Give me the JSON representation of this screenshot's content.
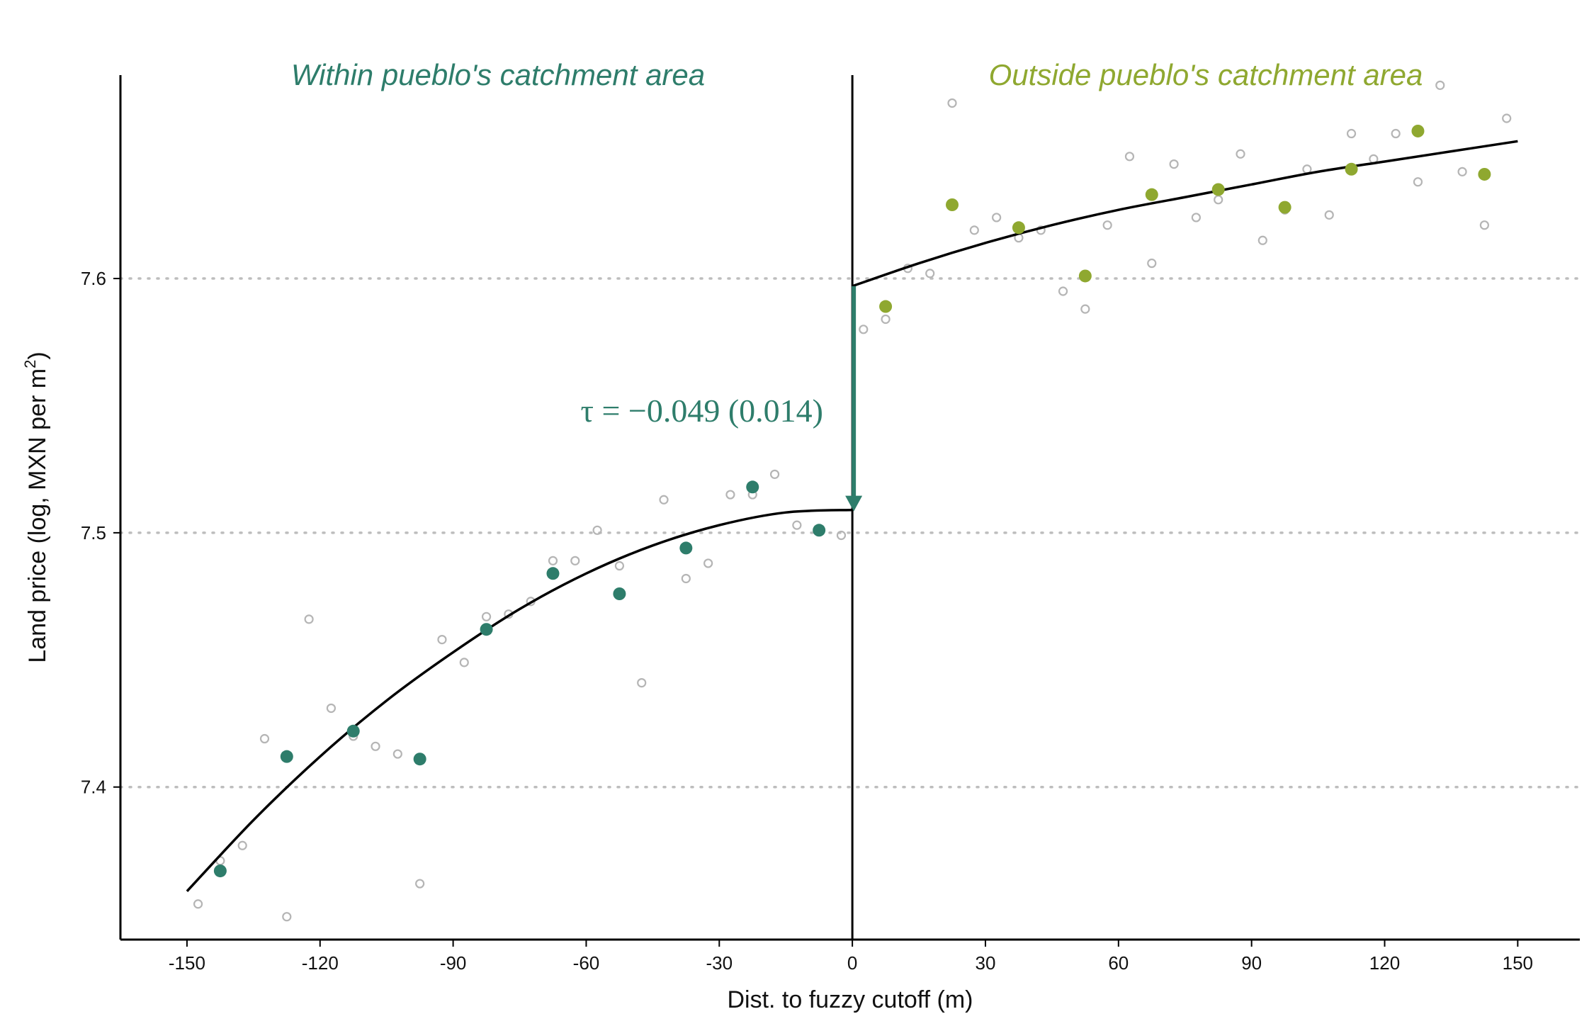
{
  "chart_data": {
    "type": "scatter",
    "xlabel": "Dist. to fuzzy cutoff (m)",
    "ylabel_main": "Land price (log, MXN per m",
    "ylabel_sup": "2",
    "ylabel_close": ")",
    "xlim": [
      -165,
      164
    ],
    "ylim": [
      7.34,
      7.68
    ],
    "x_ticks": [
      -150,
      -120,
      -90,
      -60,
      -30,
      0,
      30,
      60,
      90,
      120,
      150
    ],
    "y_ticks": [
      7.4,
      7.5,
      7.6
    ],
    "y_tick_labels": [
      "7.4",
      "7.5",
      "7.6"
    ],
    "gridlines_y": [
      7.4,
      7.5,
      7.6
    ],
    "cutoff_x": 0,
    "region_labels": {
      "left": "Within pueblo's catchment area",
      "right": "Outside pueblo's catchment area"
    },
    "colors": {
      "left": "#2e7d6b",
      "right": "#8fa830",
      "raw": "#b5b5b5",
      "fit": "#000000",
      "grid": "#bdbdbd"
    },
    "annotation": {
      "text": "τ = −0.049 (0.014)",
      "arrow_x": 0,
      "arrow_from": 7.597,
      "arrow_to": 7.509
    },
    "series": [
      {
        "role": "binned-left",
        "x": [
          -142.5,
          -127.5,
          -112.5,
          -97.5,
          -82.5,
          -67.5,
          -52.5,
          -37.5,
          -22.5,
          -7.5
        ],
        "y": [
          7.367,
          7.412,
          7.422,
          7.411,
          7.462,
          7.484,
          7.476,
          7.494,
          7.518,
          7.501
        ]
      },
      {
        "role": "binned-right",
        "x": [
          7.5,
          22.5,
          37.5,
          52.5,
          67.5,
          82.5,
          97.5,
          112.5,
          127.5,
          142.5
        ],
        "y": [
          7.589,
          7.629,
          7.62,
          7.601,
          7.633,
          7.635,
          7.628,
          7.643,
          7.658,
          7.641
        ]
      },
      {
        "role": "raw",
        "x": [
          -147.5,
          -142.5,
          -137.5,
          -132.5,
          -127.5,
          -122.5,
          -117.5,
          -112.5,
          -107.5,
          -102.5,
          -97.5,
          -92.5,
          -87.5,
          -82.5,
          -77.5,
          -72.5,
          -67.5,
          -62.5,
          -57.5,
          -52.5,
          -47.5,
          -42.5,
          -37.5,
          -32.5,
          -27.5,
          -22.5,
          -17.5,
          -12.5,
          -7.5,
          -2.5,
          2.5,
          7.5,
          12.5,
          17.5,
          22.5,
          27.5,
          32.5,
          37.5,
          42.5,
          47.5,
          52.5,
          57.5,
          62.5,
          67.5,
          72.5,
          77.5,
          82.5,
          87.5,
          92.5,
          97.5,
          102.5,
          107.5,
          112.5,
          117.5,
          122.5,
          127.5,
          132.5,
          137.5,
          142.5,
          147.5
        ],
        "y": [
          7.354,
          7.371,
          7.377,
          7.419,
          7.349,
          7.466,
          7.431,
          7.42,
          7.416,
          7.413,
          7.362,
          7.458,
          7.449,
          7.467,
          7.468,
          7.473,
          7.489,
          7.489,
          7.501,
          7.487,
          7.441,
          7.513,
          7.482,
          7.488,
          7.515,
          7.515,
          7.523,
          7.503,
          7.501,
          7.499,
          7.58,
          7.584,
          7.604,
          7.602,
          7.669,
          7.619,
          7.624,
          7.616,
          7.619,
          7.595,
          7.588,
          7.621,
          7.648,
          7.606,
          7.645,
          7.624,
          7.631,
          7.649,
          7.615,
          7.627,
          7.643,
          7.625,
          7.657,
          7.647,
          7.657,
          7.638,
          7.676,
          7.642,
          7.621,
          7.663
        ]
      }
    ],
    "fits": [
      {
        "role": "fit-left",
        "x": [
          -150,
          -135,
          -120,
          -105,
          -90,
          -75,
          -60,
          -45,
          -30,
          -15,
          0
        ],
        "y": [
          7.359,
          7.387,
          7.412,
          7.434,
          7.453,
          7.47,
          7.484,
          7.495,
          7.503,
          7.508,
          7.509
        ]
      },
      {
        "role": "fit-right",
        "x": [
          0,
          15,
          30,
          45,
          60,
          75,
          90,
          105,
          120,
          135,
          150
        ],
        "y": [
          7.597,
          7.606,
          7.614,
          7.621,
          7.627,
          7.632,
          7.637,
          7.642,
          7.646,
          7.65,
          7.654
        ]
      }
    ]
  }
}
